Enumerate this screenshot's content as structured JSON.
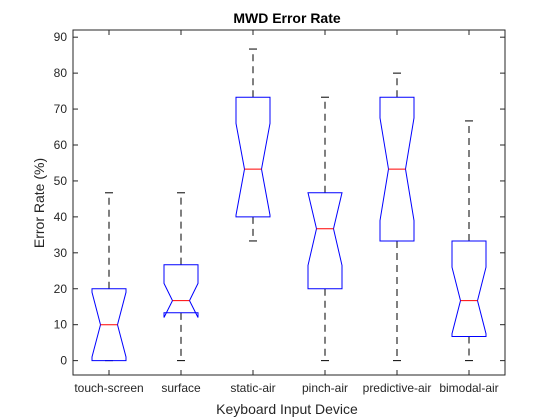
{
  "chart_data": {
    "type": "boxplot",
    "title": "MWD Error Rate",
    "xlabel": "Keyboard Input Device",
    "ylabel": "Error Rate (%)",
    "ylim": [
      -4,
      92
    ],
    "yticks": [
      0,
      10,
      20,
      30,
      40,
      50,
      60,
      70,
      80,
      90
    ],
    "grid": false,
    "notched": true,
    "categories": [
      "touch-screen",
      "surface",
      "static-air",
      "pinch-air",
      "predictive-air",
      "bimodal-air"
    ],
    "boxes": [
      {
        "whisker_low": 0,
        "q1": 0,
        "median": 10,
        "q3": 20,
        "whisker_high": 46.7,
        "notch_low": 1,
        "notch_high": 19
      },
      {
        "whisker_low": 0,
        "q1": 13.3,
        "median": 16.7,
        "q3": 26.7,
        "whisker_high": 46.7,
        "notch_low": 12,
        "notch_high": 21.5
      },
      {
        "whisker_low": 33.3,
        "q1": 40,
        "median": 53.3,
        "q3": 73.3,
        "whisker_high": 86.7,
        "notch_low": 40.5,
        "notch_high": 66
      },
      {
        "whisker_low": 0,
        "q1": 20,
        "median": 36.7,
        "q3": 46.7,
        "whisker_high": 73.3,
        "notch_low": 26.5,
        "notch_high": 46.7
      },
      {
        "whisker_low": 0,
        "q1": 33.3,
        "median": 53.3,
        "q3": 73.3,
        "whisker_high": 80,
        "notch_low": 39,
        "notch_high": 67.5
      },
      {
        "whisker_low": 0,
        "q1": 6.7,
        "median": 16.7,
        "q3": 33.3,
        "whisker_high": 66.7,
        "notch_low": 7.5,
        "notch_high": 26
      }
    ],
    "colors": {
      "box": "#0000ff",
      "median": "#ff0000",
      "whisker": "#000000",
      "axis": "#262626"
    }
  }
}
